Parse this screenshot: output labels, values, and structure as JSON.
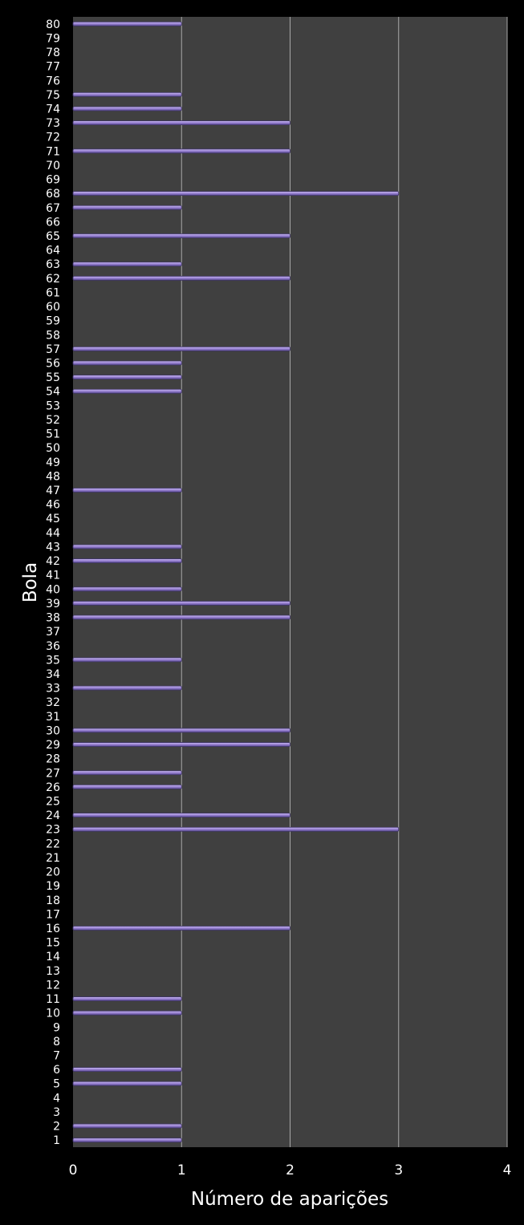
{
  "chart_data": {
    "type": "bar",
    "orientation": "horizontal",
    "xlabel": "Número de aparições",
    "ylabel": "Bola",
    "xlim": [
      0,
      4
    ],
    "xticks": [
      0,
      1,
      2,
      3,
      4
    ],
    "grid": true,
    "colors": {
      "background": "#000000",
      "plot_area": "#404040",
      "bar": "#9d86d6",
      "bar_edge": "#3e3466",
      "gridline": "#a8a8a8",
      "text": "#ffffff"
    },
    "categories": [
      "1",
      "2",
      "3",
      "4",
      "5",
      "6",
      "7",
      "8",
      "9",
      "10",
      "11",
      "12",
      "13",
      "14",
      "15",
      "16",
      "17",
      "18",
      "19",
      "20",
      "21",
      "22",
      "23",
      "24",
      "25",
      "26",
      "27",
      "28",
      "29",
      "30",
      "31",
      "32",
      "33",
      "34",
      "35",
      "36",
      "37",
      "38",
      "39",
      "40",
      "41",
      "42",
      "43",
      "44",
      "45",
      "46",
      "47",
      "48",
      "49",
      "50",
      "51",
      "52",
      "53",
      "54",
      "55",
      "56",
      "57",
      "58",
      "59",
      "60",
      "61",
      "62",
      "63",
      "64",
      "65",
      "66",
      "67",
      "68",
      "69",
      "70",
      "71",
      "72",
      "73",
      "74",
      "75",
      "76",
      "77",
      "78",
      "79",
      "80"
    ],
    "values": [
      1,
      1,
      0,
      0,
      1,
      1,
      0,
      0,
      0,
      1,
      1,
      0,
      0,
      0,
      0,
      2,
      0,
      0,
      0,
      0,
      0,
      0,
      3,
      2,
      0,
      1,
      1,
      0,
      2,
      2,
      0,
      0,
      1,
      0,
      1,
      0,
      0,
      2,
      2,
      1,
      0,
      1,
      1,
      0,
      0,
      0,
      1,
      0,
      0,
      0,
      0,
      0,
      0,
      1,
      1,
      1,
      2,
      0,
      0,
      0,
      0,
      2,
      1,
      0,
      2,
      0,
      1,
      3,
      0,
      0,
      2,
      0,
      2,
      1,
      1,
      0,
      0,
      0,
      0,
      1
    ]
  }
}
